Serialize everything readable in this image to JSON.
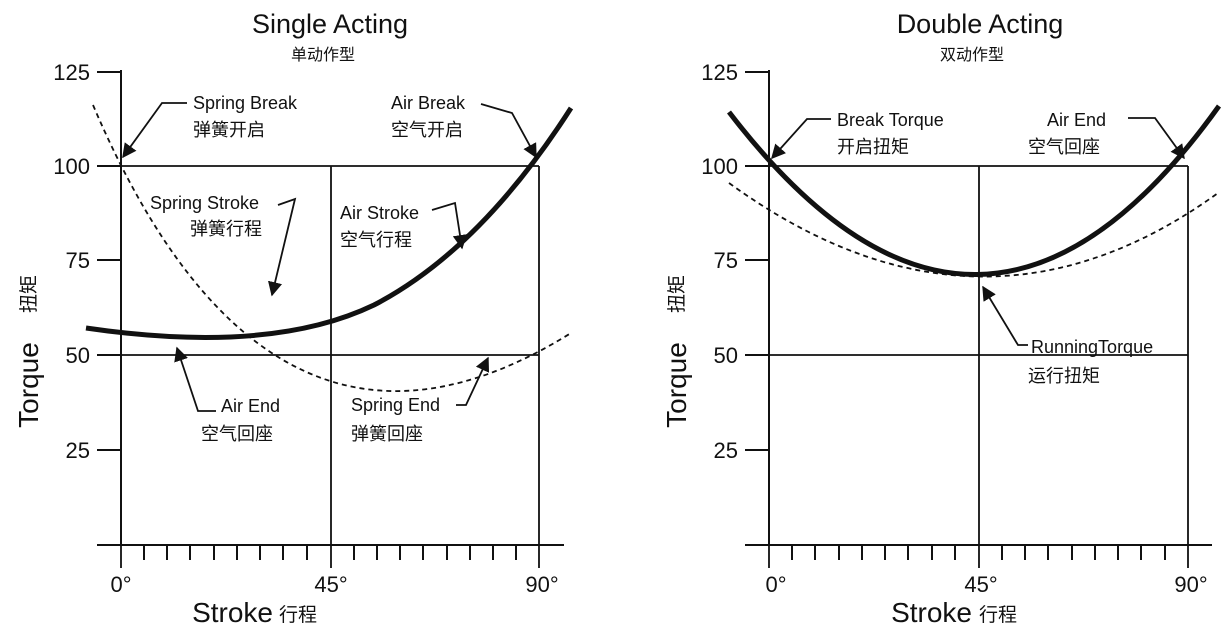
{
  "charts": [
    {
      "title": "Single Acting",
      "subtitle": "单动作型",
      "y_ticks": [
        "125",
        "100",
        "75",
        "50",
        "25"
      ],
      "x_ticks": [
        "0°",
        "45°",
        "90°"
      ],
      "y_axis_title": "Torque",
      "y_axis_title_cn": "扭矩",
      "x_axis_title": "Stroke",
      "x_axis_title_cn": "行程",
      "annotations": {
        "spring_break": [
          "Spring Break",
          "弹簧开启"
        ],
        "air_break": [
          "Air Break",
          "空气开启"
        ],
        "spring_stroke": [
          "Spring Stroke",
          "弹簧行程"
        ],
        "air_stroke": [
          "Air Stroke",
          "空气行程"
        ],
        "air_end": [
          "Air End",
          "空气回座"
        ],
        "spring_end": [
          "Spring End",
          "弹簧回座"
        ]
      }
    },
    {
      "title": "Double Acting",
      "subtitle": "双动作型",
      "y_ticks": [
        "125",
        "100",
        "75",
        "50",
        "25"
      ],
      "x_ticks": [
        "0°",
        "45°",
        "90°"
      ],
      "y_axis_title": "Torque",
      "y_axis_title_cn": "扭矩",
      "x_axis_title": "Stroke",
      "x_axis_title_cn": "行程",
      "annotations": {
        "break_torque": [
          "Break Torque",
          "开启扭矩"
        ],
        "air_end": [
          "Air End",
          "空气回座"
        ],
        "running_torque": [
          "RunningTorque",
          "运行扭矩"
        ]
      }
    }
  ],
  "chart_data": [
    {
      "type": "line",
      "title": "Single Acting",
      "subtitle": "单动作型",
      "xlabel": "Stroke 行程",
      "ylabel": "Torque 扭矩",
      "xlim": [
        0,
        90
      ],
      "ylim": [
        0,
        125
      ],
      "x_ticks": [
        0,
        45,
        90
      ],
      "y_ticks": [
        25,
        50,
        75,
        100,
        125
      ],
      "series": [
        {
          "line": "solid",
          "x": [
            -15,
            0,
            20,
            35,
            45,
            60,
            75,
            90,
            98
          ],
          "y": [
            57.5,
            55,
            53,
            55,
            58,
            66,
            79,
            97,
            115
          ]
        },
        {
          "line": "dashed",
          "x": [
            -12,
            0,
            15,
            30,
            45,
            60,
            75,
            90,
            97
          ],
          "y": [
            117,
            101,
            80,
            65,
            57,
            53,
            52,
            53,
            55.5
          ]
        }
      ]
    },
    {
      "type": "line",
      "title": "Double Acting",
      "subtitle": "双动作型",
      "xlabel": "Stroke 行程",
      "ylabel": "Torque 扭矩",
      "xlim": [
        0,
        90
      ],
      "ylim": [
        0,
        125
      ],
      "x_ticks": [
        0,
        45,
        90
      ],
      "y_ticks": [
        25,
        50,
        75,
        100,
        125
      ],
      "series": [
        {
          "line": "solid",
          "x": [
            -18,
            0,
            15,
            30,
            45,
            60,
            75,
            90,
            100
          ],
          "y": [
            117,
            100,
            85,
            75,
            71,
            72,
            81,
            98,
            116
          ]
        },
        {
          "line": "dashed",
          "x": [
            -18,
            0,
            20,
            45,
            70,
            90,
            100
          ],
          "y": [
            94,
            91,
            78,
            71,
            76,
            87,
            94
          ]
        }
      ]
    }
  ]
}
